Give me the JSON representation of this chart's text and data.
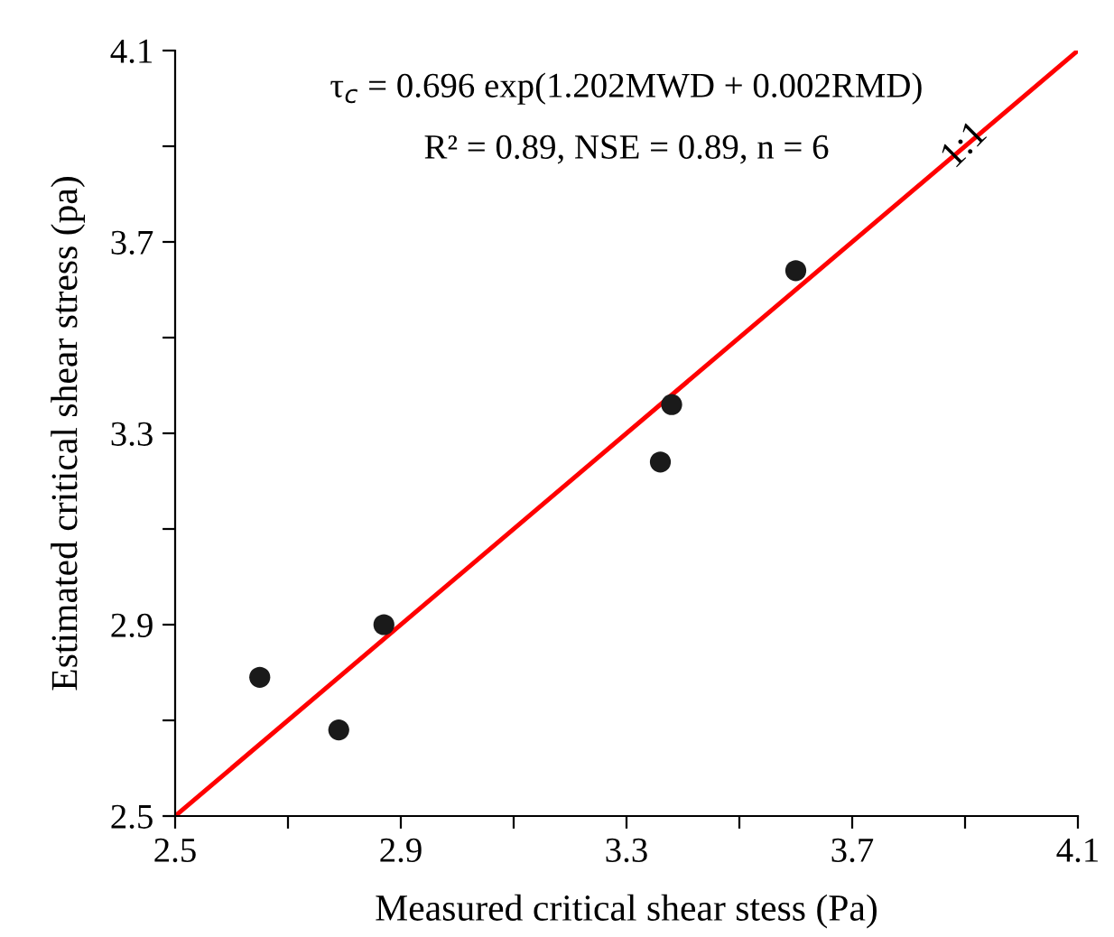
{
  "chart_data": {
    "type": "scatter",
    "xlabel": "Measured critical shear stess (Pa)",
    "ylabel": "Estimated critical shear stress (pa)",
    "x": [
      2.65,
      2.79,
      2.87,
      3.36,
      3.38,
      3.6
    ],
    "series": [
      {
        "color": "#1a1a1a",
        "marker": "circle",
        "values": [
          2.79,
          2.68,
          2.9,
          3.24,
          3.36,
          3.64
        ]
      },
      {
        "type": "line",
        "marker": "none",
        "color": "#ff0000",
        "x": [
          2.5,
          4.1
        ],
        "values": [
          2.5,
          4.1
        ]
      }
    ],
    "xlim": [
      2.5,
      4.1
    ],
    "ylim": [
      2.5,
      4.1
    ],
    "xticks": [
      2.5,
      {
        "value": 2.7,
        "label": null
      },
      2.9,
      {
        "value": 3.1,
        "label": null
      },
      3.3,
      {
        "value": 3.5,
        "label": null
      },
      3.7,
      {
        "value": 3.9,
        "label": null
      },
      4.1
    ],
    "yticks": [
      2.5,
      {
        "value": 2.7,
        "label": null
      },
      2.9,
      {
        "value": 3.1,
        "label": null
      },
      3.3,
      {
        "value": 3.5,
        "label": null
      },
      3.7,
      {
        "value": 3.9,
        "label": null
      },
      4.1
    ],
    "grid": false,
    "legend": false,
    "annotations": [
      "τ$_{c}$ = 0.696 exp(1.202MWD + 0.002RMD)",
      "R² = 0.89, NSE = 0.89, n = 6",
      {
        "text": "1:1",
        "x": 3.9,
        "y": 3.9
      }
    ]
  }
}
